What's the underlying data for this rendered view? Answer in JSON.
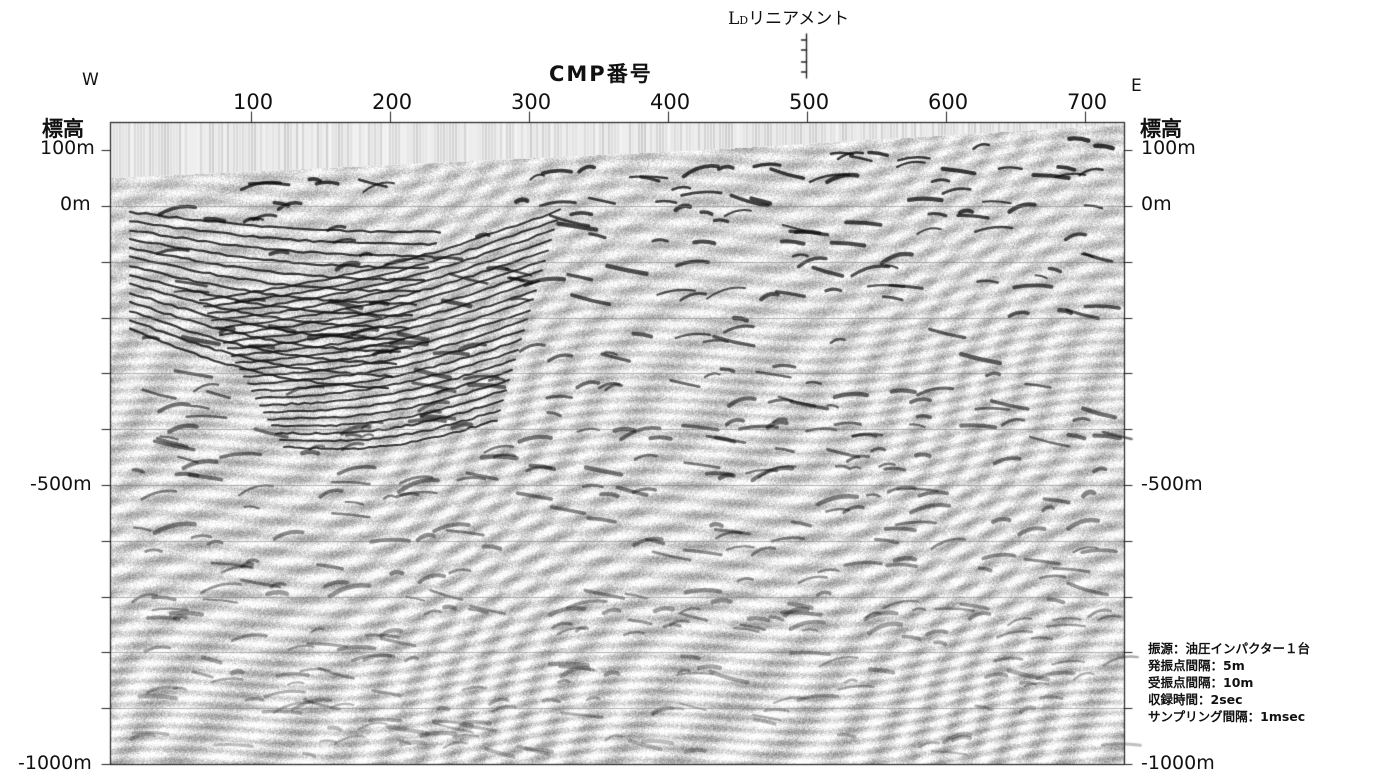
{
  "lineament": {
    "label_main": "L",
    "label_sub": "D",
    "label_rest": "リニアメント"
  },
  "direction": {
    "west": "W",
    "east": "E"
  },
  "cmp_axis": {
    "title": "CMP番号",
    "ticks": [
      "100",
      "200",
      "300",
      "400",
      "500",
      "600",
      "700"
    ]
  },
  "elevation_axis": {
    "header": "標高",
    "labels": [
      "100m",
      "0m",
      "-500m",
      "-1000m"
    ]
  },
  "acquisition": [
    "振源：油圧インパクター１台",
    "発振点間隔：5m",
    "受振点間隔：10m",
    "収録時間：2sec",
    "サンプリング間隔：1msec"
  ]
}
